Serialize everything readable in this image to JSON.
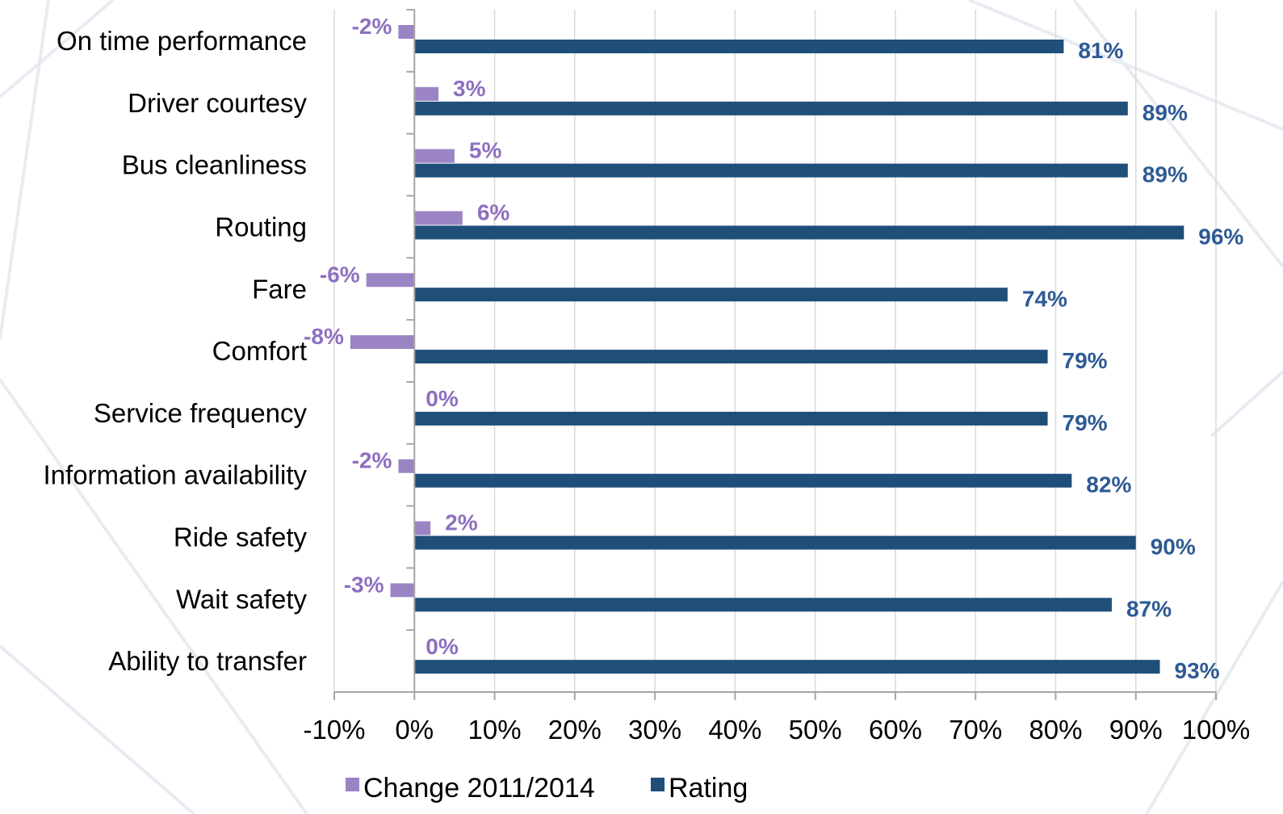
{
  "chart_data": {
    "type": "bar",
    "orientation": "horizontal",
    "categories": [
      "On time performance",
      "Driver courtesy",
      "Bus cleanliness",
      "Routing",
      "Fare",
      "Comfort",
      "Service frequency",
      "Information availability",
      "Ride safety",
      "Wait safety",
      "Ability to transfer"
    ],
    "series": [
      {
        "name": "Change 2011/2014",
        "color": "#9b84c4",
        "label_color": "#8e6fc0",
        "values": [
          -2,
          3,
          5,
          6,
          -6,
          -8,
          0,
          -2,
          2,
          -3,
          0
        ],
        "labels": [
          "-2%",
          "3%",
          "5%",
          "6%",
          "-6%",
          "-8%",
          "0%",
          "-2%",
          "2%",
          "-3%",
          "0%"
        ]
      },
      {
        "name": "Rating",
        "color": "#1f4e79",
        "label_color": "#2e5a94",
        "values": [
          81,
          89,
          89,
          96,
          74,
          79,
          79,
          82,
          90,
          87,
          93
        ],
        "labels": [
          "81%",
          "89%",
          "89%",
          "96%",
          "74%",
          "79%",
          "79%",
          "82%",
          "90%",
          "87%",
          "93%"
        ]
      }
    ],
    "xlim": [
      -10,
      100
    ],
    "x_ticks": [
      -10,
      0,
      10,
      20,
      30,
      40,
      50,
      60,
      70,
      80,
      90,
      100
    ],
    "x_tick_labels": [
      "-10%",
      "0%",
      "10%",
      "20%",
      "30%",
      "40%",
      "50%",
      "60%",
      "70%",
      "80%",
      "90%",
      "100%"
    ],
    "title": "",
    "xlabel": "",
    "ylabel": "",
    "grid": "vertical",
    "grid_color": "#d9d9d9",
    "legend_position": "bottom"
  }
}
